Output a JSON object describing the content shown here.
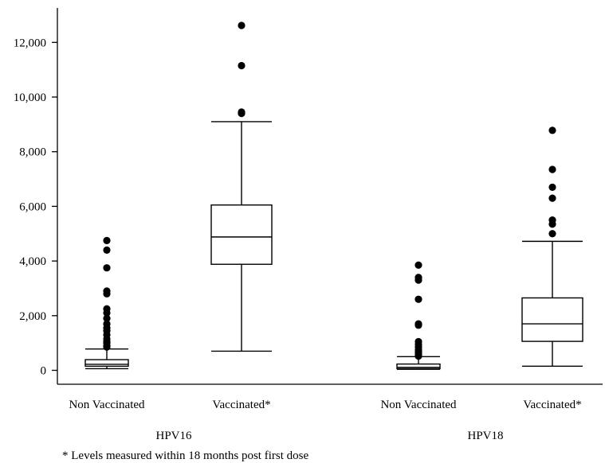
{
  "chart_data": {
    "type": "box",
    "ylim": [
      0,
      12800
    ],
    "y_ticks": [
      0,
      2000,
      4000,
      6000,
      8000,
      10000,
      12000
    ],
    "y_tick_labels": [
      "0",
      "2,000",
      "4,000",
      "6,000",
      "8,000",
      "10,000",
      "12,000"
    ],
    "groups": [
      {
        "label": "HPV16",
        "categories": [
          "Non Vaccinated",
          "Vaccinated*"
        ]
      },
      {
        "label": "HPV18",
        "categories": [
          "Non Vaccinated",
          "Vaccinated*"
        ]
      }
    ],
    "series": [
      {
        "group": "HPV16",
        "category": "Non Vaccinated",
        "whisker_low": 60,
        "q1": 150,
        "median": 220,
        "q3": 390,
        "whisker_high": 780,
        "outliers": [
          850,
          900,
          1000,
          1050,
          1150,
          1300,
          1450,
          1550,
          1700,
          1900,
          2100,
          2250,
          2800,
          2900,
          3750,
          4400,
          4750
        ]
      },
      {
        "group": "HPV16",
        "category": "Vaccinated*",
        "whisker_low": 700,
        "q1": 3880,
        "median": 4880,
        "q3": 6050,
        "whisker_high": 9100,
        "outliers": [
          9400,
          9450,
          11150,
          12620
        ]
      },
      {
        "group": "HPV18",
        "category": "Non Vaccinated",
        "whisker_low": 40,
        "q1": 60,
        "median": 110,
        "q3": 230,
        "whisker_high": 500,
        "outliers": [
          520,
          560,
          620,
          680,
          750,
          850,
          950,
          1050,
          1650,
          1700,
          2600,
          3300,
          3400,
          3850
        ]
      },
      {
        "group": "HPV18",
        "category": "Vaccinated*",
        "whisker_low": 150,
        "q1": 1060,
        "median": 1700,
        "q3": 2650,
        "whisker_high": 4720,
        "outliers": [
          5000,
          5350,
          5500,
          6300,
          6700,
          7350,
          8780
        ]
      }
    ],
    "footnote": "* Levels measured within 18 months post first dose"
  }
}
